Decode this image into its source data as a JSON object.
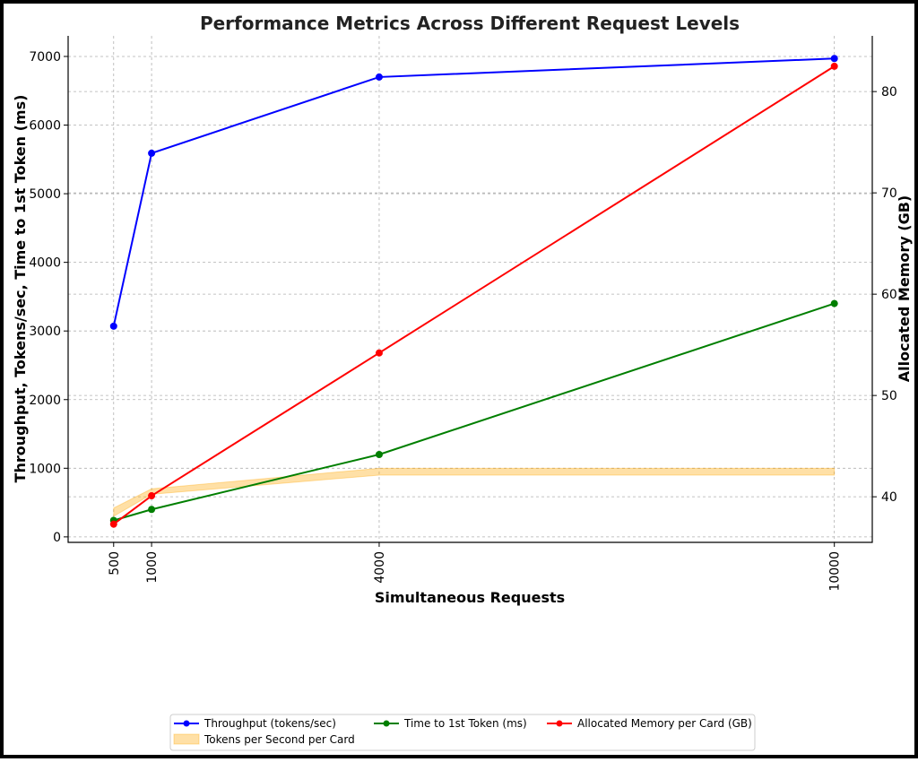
{
  "chart_data": {
    "type": "line",
    "title": "Performance Metrics Across Different Request Levels",
    "xlabel": "Simultaneous Requests",
    "ylabel_left": "Throughput, Tokens/sec, Time to 1st Token (ms)",
    "ylabel_right": "Allocated Memory (GB)",
    "x": [
      500,
      1000,
      4000,
      10000
    ],
    "x_tick_labels": [
      "500",
      "1000",
      "4000",
      "10000"
    ],
    "xlim": [
      -100,
      10500
    ],
    "ylim_left": [
      -80,
      7300
    ],
    "ylim_right": [
      35.5,
      85.5
    ],
    "y_left_ticks": [
      0,
      1000,
      2000,
      3000,
      4000,
      5000,
      6000,
      7000
    ],
    "y_right_ticks": [
      40,
      50,
      60,
      70,
      80
    ],
    "grid": true,
    "legend_position": "bottom-center",
    "series": [
      {
        "name": "Throughput (tokens/sec)",
        "axis": "left",
        "color": "#0000ff",
        "marker": true,
        "values": [
          3070,
          5590,
          6700,
          6970
        ]
      },
      {
        "name": "Time to 1st Token (ms)",
        "axis": "left",
        "color": "#007f00",
        "marker": true,
        "values": [
          240,
          400,
          1200,
          3400
        ]
      },
      {
        "name": "Allocated Memory per Card (GB)",
        "axis": "right",
        "color": "#ff0000",
        "marker": true,
        "values": [
          37.3,
          40.1,
          54.2,
          82.5
        ]
      },
      {
        "name": "Tokens per Second per Card",
        "axis": "left",
        "type": "area",
        "color": "#ffa500",
        "lower": [
          300,
          620,
          900,
          900
        ],
        "upper": [
          420,
          700,
          1000,
          1000
        ]
      }
    ]
  }
}
